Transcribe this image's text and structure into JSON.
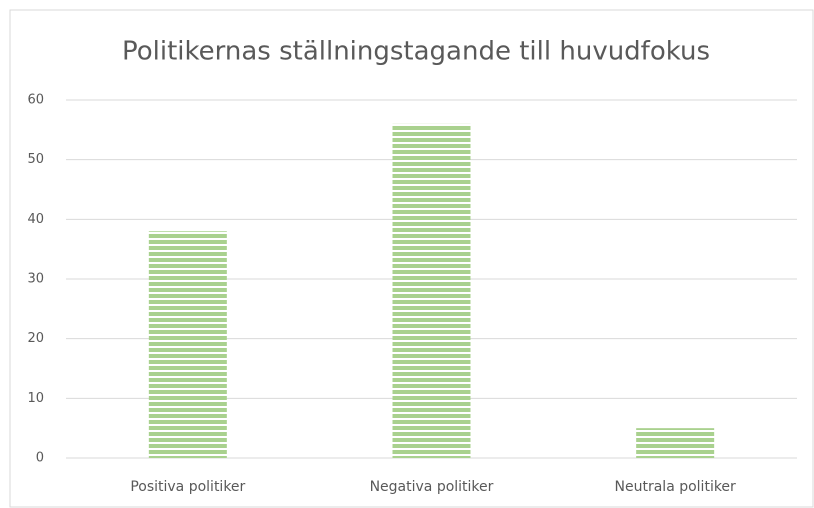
{
  "chart_data": {
    "type": "bar",
    "title": "Politikernas ställningstagande till huvudfokus",
    "categories": [
      "Positiva politiker",
      "Negativa politiker",
      "Neutrala politiker"
    ],
    "values": [
      38,
      56,
      5
    ],
    "color": "#a9d18e",
    "ylim": [
      0,
      60
    ],
    "yticks": [
      0,
      10,
      20,
      30,
      40,
      50,
      60
    ],
    "grid": true
  }
}
